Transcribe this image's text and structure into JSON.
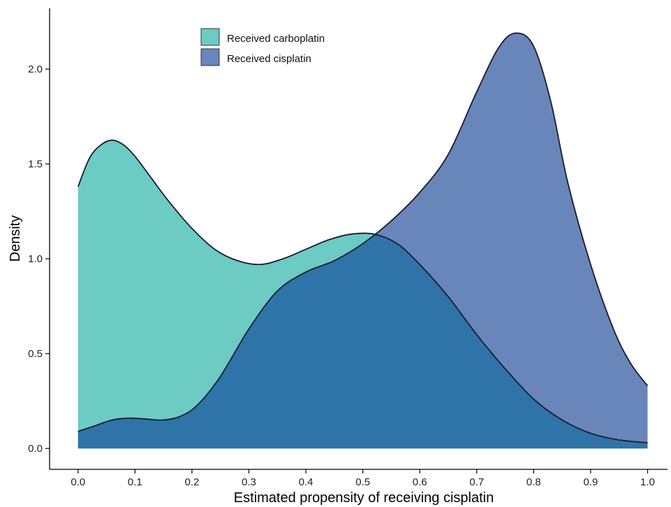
{
  "chart_data": {
    "type": "area",
    "title": "",
    "xlabel": "Estimated propensity of receiving cisplatin",
    "ylabel": "Density",
    "xlim": [
      -0.05,
      1.035
    ],
    "ylim": [
      -0.11,
      2.32
    ],
    "x_ticks": [
      0.0,
      0.1,
      0.2,
      0.3,
      0.4,
      0.5,
      0.6,
      0.7,
      0.8,
      0.9,
      1.0
    ],
    "x_tick_labels": [
      "0.0",
      "0.1",
      "0.2",
      "0.3",
      "0.4",
      "0.5",
      "0.6",
      "0.7",
      "0.8",
      "0.9",
      "1.0"
    ],
    "y_ticks": [
      0.0,
      0.5,
      1.0,
      1.5,
      2.0
    ],
    "y_tick_labels": [
      "0.0",
      "0.5",
      "1.0",
      "1.5",
      "2.0"
    ],
    "grid": false,
    "legend_position": "top-left",
    "overlap_color": "#2f74a8",
    "series": [
      {
        "name": "Received carboplatin",
        "color": "#6ccbc2",
        "x": [
          0.0,
          0.02,
          0.04,
          0.06,
          0.08,
          0.1,
          0.13,
          0.16,
          0.2,
          0.24,
          0.28,
          0.32,
          0.36,
          0.4,
          0.44,
          0.48,
          0.52,
          0.56,
          0.6,
          0.65,
          0.7,
          0.75,
          0.8,
          0.85,
          0.9,
          0.95,
          1.0
        ],
        "y": [
          1.38,
          1.53,
          1.6,
          1.625,
          1.6,
          1.54,
          1.42,
          1.3,
          1.16,
          1.05,
          0.99,
          0.97,
          1.0,
          1.05,
          1.1,
          1.13,
          1.13,
          1.08,
          0.97,
          0.8,
          0.6,
          0.42,
          0.26,
          0.15,
          0.08,
          0.045,
          0.03
        ]
      },
      {
        "name": "Received cisplatin",
        "color": "#6886b9",
        "x": [
          0.0,
          0.03,
          0.06,
          0.09,
          0.12,
          0.15,
          0.18,
          0.21,
          0.25,
          0.3,
          0.35,
          0.4,
          0.45,
          0.5,
          0.55,
          0.6,
          0.65,
          0.7,
          0.74,
          0.77,
          0.8,
          0.83,
          0.86,
          0.9,
          0.94,
          0.97,
          1.0
        ],
        "y": [
          0.09,
          0.12,
          0.15,
          0.16,
          0.155,
          0.15,
          0.17,
          0.23,
          0.38,
          0.63,
          0.83,
          0.93,
          0.99,
          1.08,
          1.2,
          1.35,
          1.55,
          1.88,
          2.12,
          2.19,
          2.12,
          1.83,
          1.4,
          0.97,
          0.63,
          0.45,
          0.33
        ]
      }
    ]
  }
}
